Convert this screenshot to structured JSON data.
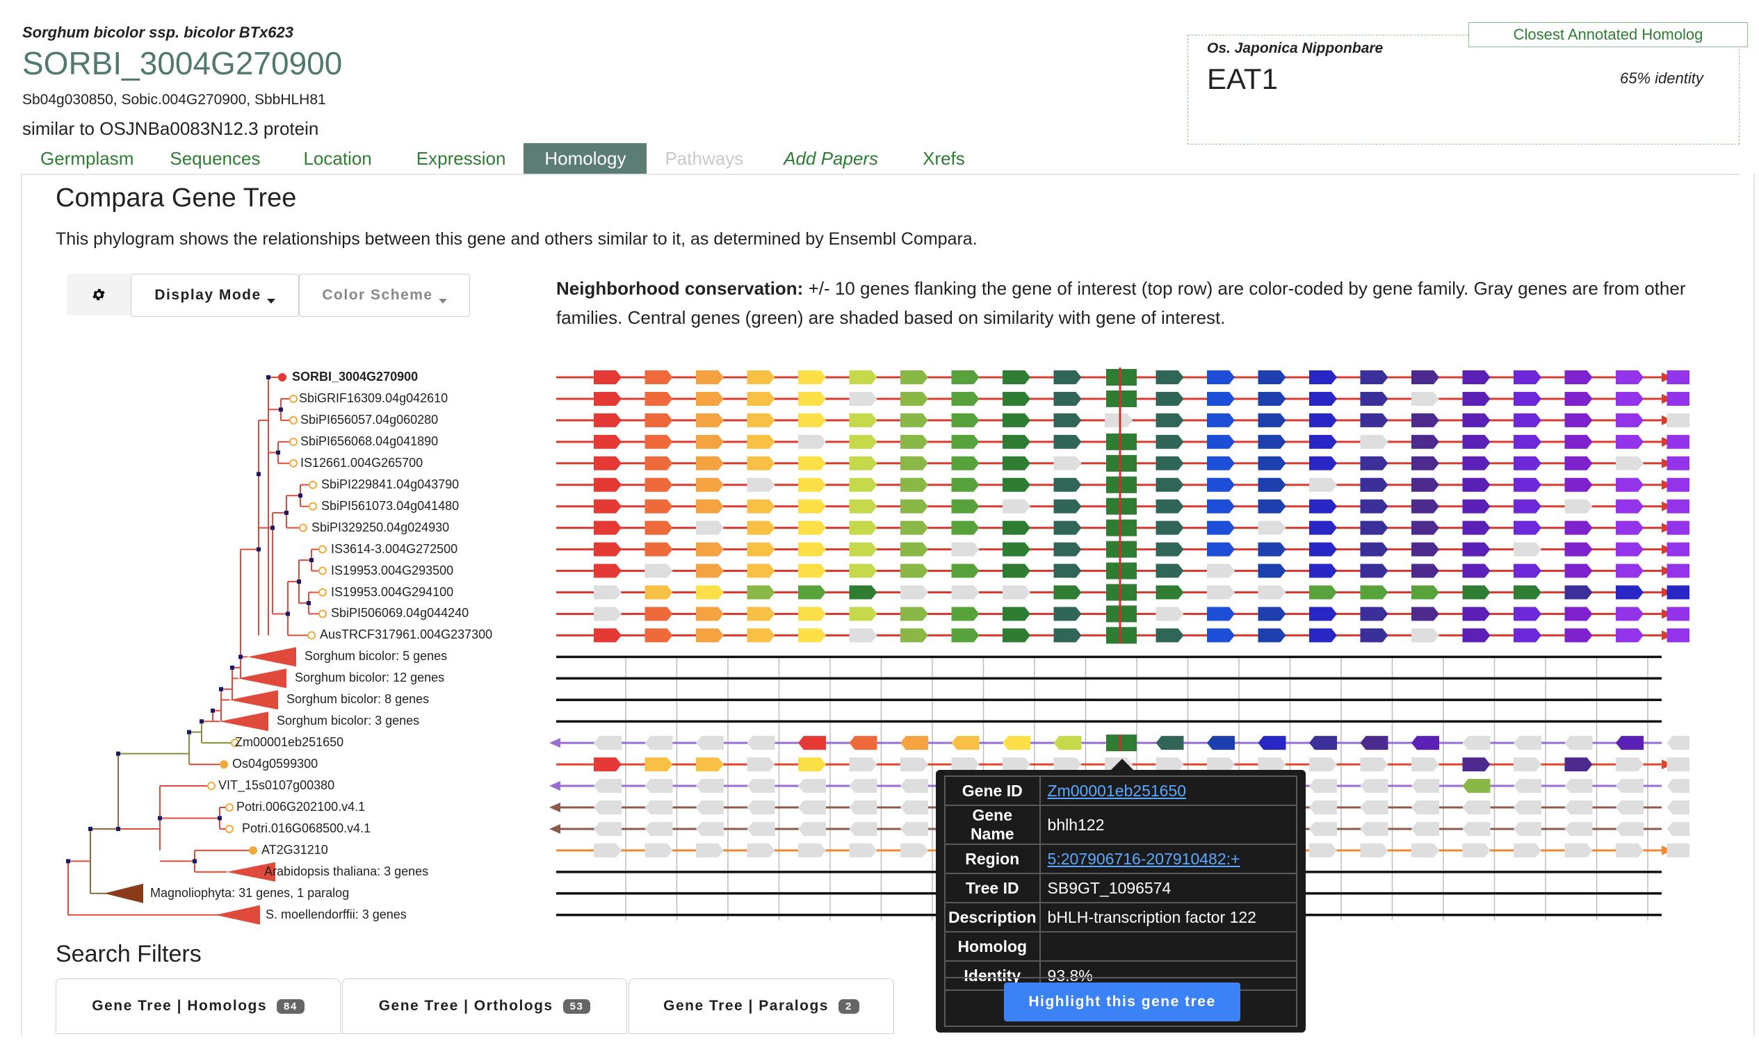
{
  "header": {
    "species": "Sorghum bicolor ssp. bicolor BTx623",
    "gene_id": "SORBI_3004G270900",
    "synonyms": "Sb04g030850, Sobic.004G270900, SbbHLH81",
    "description": "similar to OSJNBa0083N12.3 protein"
  },
  "closest_homolog": {
    "tag": "Closest Annotated Homolog",
    "species": "Os. Japonica Nipponbare",
    "name": "EAT1",
    "identity": "65% identity"
  },
  "tabs": [
    {
      "label": "Germplasm"
    },
    {
      "label": "Sequences"
    },
    {
      "label": "Location"
    },
    {
      "label": "Expression"
    },
    {
      "label": "Homology"
    },
    {
      "label": "Pathways"
    },
    {
      "label": "Add Papers"
    },
    {
      "label": "Xrefs"
    }
  ],
  "compara": {
    "title": "Compara Gene Tree",
    "intro": "This phylogram shows the relationships between this gene and others similar to it, as determined by Ensembl Compara.",
    "display_mode_label": "Display Mode",
    "color_scheme_label": "Color Scheme",
    "legend_bold": "Neighborhood conservation:",
    "legend_text": " +/- 10 genes flanking the gene of interest (top row) are color-coded by gene family. Gray genes are from other families. Central genes (green) are shaded based on similarity with gene of interest."
  },
  "tree_labels": [
    {
      "label": "SORBI_3004G270900",
      "bold": true,
      "type": "leaf-red"
    },
    {
      "label": "SbiGRIF16309.04g042610",
      "type": "leaf"
    },
    {
      "label": "SbiPI656057.04g060280",
      "type": "leaf"
    },
    {
      "label": "SbiPI656068.04g041890",
      "type": "leaf"
    },
    {
      "label": "IS12661.004G265700",
      "type": "leaf"
    },
    {
      "label": "SbiPI229841.04g043790",
      "type": "leaf"
    },
    {
      "label": "SbiPI561073.04g041480",
      "type": "leaf"
    },
    {
      "label": "SbiPI329250.04g024930",
      "type": "leaf"
    },
    {
      "label": "IS3614-3.004G272500",
      "type": "leaf"
    },
    {
      "label": "IS19953.004G293500",
      "type": "leaf"
    },
    {
      "label": "IS19953.004G294100",
      "type": "leaf"
    },
    {
      "label": "SbiPI506069.04g044240",
      "type": "leaf"
    },
    {
      "label": "AusTRCF317961.004G237300",
      "type": "leaf"
    },
    {
      "label": "Sorghum bicolor: 5 genes",
      "type": "collapsed-red"
    },
    {
      "label": "Sorghum bicolor: 12 genes",
      "type": "collapsed-red"
    },
    {
      "label": "Sorghum bicolor: 8 genes",
      "type": "collapsed-red"
    },
    {
      "label": "Sorghum bicolor: 3 genes",
      "type": "collapsed-red"
    },
    {
      "label": "Zm00001eb251650",
      "type": "leaf"
    },
    {
      "label": "Os04g0599300",
      "type": "leaf-filled"
    },
    {
      "label": "VIT_15s0107g00380",
      "type": "leaf"
    },
    {
      "label": "Potri.006G202100.v4.1",
      "type": "leaf"
    },
    {
      "label": "Potri.016G068500.v4.1",
      "type": "leaf"
    },
    {
      "label": "AT2G31210",
      "type": "leaf-filled"
    },
    {
      "label": "Arabidopsis thaliana: 3 genes",
      "type": "collapsed-red"
    },
    {
      "label": "Magnoliophyta: 31 genes, 1 paralog",
      "type": "collapsed-brown"
    },
    {
      "label": "S. moellendorffii: 3 genes",
      "type": "collapsed-red"
    }
  ],
  "tooltip": {
    "rows": [
      {
        "key": "Gene ID",
        "value": "Zm00001eb251650",
        "link": true
      },
      {
        "key": "Gene Name",
        "value": "bhlh122"
      },
      {
        "key": "Region",
        "value": "5:207906716-207910482:+",
        "link": true
      },
      {
        "key": "Tree ID",
        "value": "SB9GT_1096574"
      },
      {
        "key": "Description",
        "value": "bHLH-transcription factor 122"
      },
      {
        "key": "Homolog",
        "value": ""
      },
      {
        "key": "Identity",
        "value": "93.8%"
      }
    ],
    "button": "Highlight this gene tree"
  },
  "search_filters": {
    "title": "Search Filters",
    "buttons": [
      {
        "label": "Gene Tree | Homologs",
        "count": "84"
      },
      {
        "label": "Gene Tree | Orthologs",
        "count": "53"
      },
      {
        "label": "Gene Tree | Paralogs",
        "count": "2"
      }
    ]
  },
  "colors": {
    "accent_green": "#52796f",
    "tab_active": "#5b7d73",
    "link_green": "#2e7d32",
    "tooltip_bg": "#1b1b1b",
    "button_blue": "#3b82f6",
    "palette": [
      "#e53935",
      "#ee6a3a",
      "#f4a340",
      "#f8c146",
      "#fde047",
      "#c6d94a",
      "#8ab847",
      "#58a23c",
      "#2e7d32",
      "#2f6657",
      "#1d4ed8",
      "#1e40af",
      "#2926c6",
      "#3b2f9a",
      "#4c2a8e",
      "#5b21b6",
      "#6d28d9",
      "#7e22ce",
      "#9333ea"
    ]
  }
}
